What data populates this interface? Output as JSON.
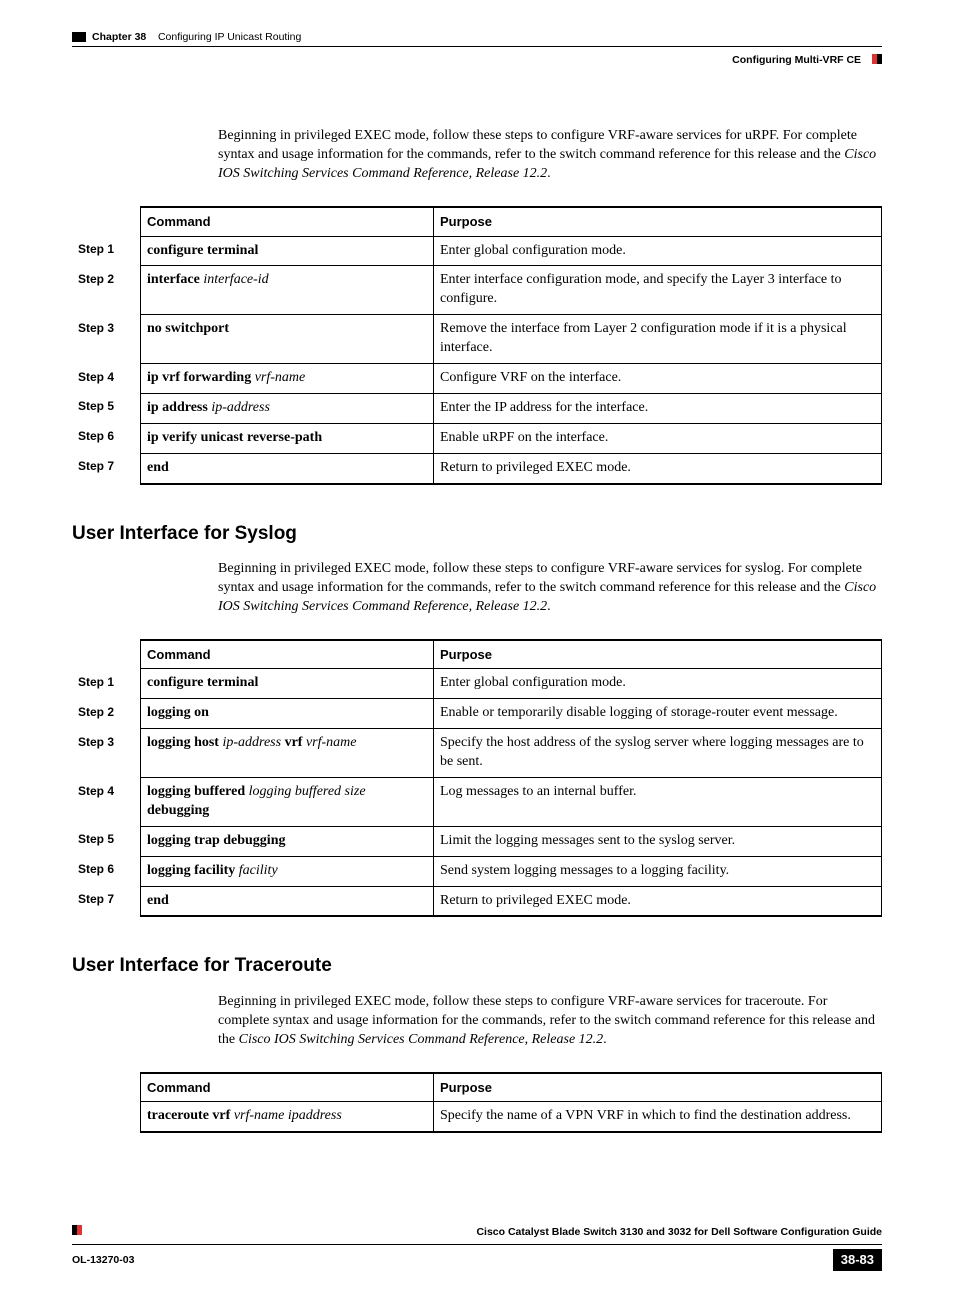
{
  "header": {
    "chapter": "Chapter 38",
    "chapter_title": "Configuring IP Unicast Routing",
    "section": "Configuring Multi-VRF CE"
  },
  "intro_urpf": {
    "text_before": "Beginning in privileged EXEC mode, follow these steps to configure VRF-aware services for uRPF. For complete syntax and usage information for the commands, refer to the switch command reference for this release and the ",
    "italic": "Cisco IOS Switching Services Command Reference, Release 12.2",
    "text_after": "."
  },
  "table_headers": {
    "command": "Command",
    "purpose": "Purpose"
  },
  "table_urpf": {
    "rows": [
      {
        "step": "Step 1",
        "cmd_bold": "configure terminal",
        "cmd_italic": "",
        "purpose": "Enter global configuration mode."
      },
      {
        "step": "Step 2",
        "cmd_bold": "interface",
        "cmd_italic": " interface-id",
        "purpose": "Enter interface configuration mode, and specify the Layer 3 interface to configure."
      },
      {
        "step": "Step 3",
        "cmd_bold": "no switchport",
        "cmd_italic": "",
        "purpose": "Remove the interface from Layer 2 configuration mode if it is a physical interface."
      },
      {
        "step": "Step 4",
        "cmd_bold": "ip vrf forwarding",
        "cmd_italic": " vrf-name",
        "purpose": "Configure VRF on the interface."
      },
      {
        "step": "Step 5",
        "cmd_bold": "ip address",
        "cmd_italic": " ip-address",
        "purpose": "Enter the IP address for the interface."
      },
      {
        "step": "Step 6",
        "cmd_bold": "ip verify unicast reverse-path",
        "cmd_italic": "",
        "purpose": "Enable uRPF on the interface."
      },
      {
        "step": "Step 7",
        "cmd_bold": "end",
        "cmd_italic": "",
        "purpose": "Return to privileged EXEC mode."
      }
    ]
  },
  "heading_syslog": "User Interface for Syslog",
  "intro_syslog": {
    "text_before": "Beginning in privileged EXEC mode, follow these steps to configure VRF-aware services for syslog. For complete syntax and usage information for the commands, refer to the switch command reference for this release and the ",
    "italic": "Cisco IOS Switching Services Command Reference, Release 12.2",
    "text_after": "."
  },
  "table_syslog": {
    "rows": [
      {
        "step": "Step 1",
        "cmd_html": "<span class=\"bold\">configure terminal</span>",
        "purpose": "Enter global configuration mode."
      },
      {
        "step": "Step 2",
        "cmd_html": "<span class=\"bold\">logging on</span>",
        "purpose": "Enable or temporarily disable logging of storage-router event message."
      },
      {
        "step": "Step 3",
        "cmd_html": "<span class=\"bold\">logging host</span> <span class=\"italic\">ip-address</span> <span class=\"bold\">vrf</span> <span class=\"italic\">vrf-name</span>",
        "purpose": "Specify the host address of the syslog server where logging messages are to be sent."
      },
      {
        "step": "Step 4",
        "cmd_html": "<span class=\"bold\">logging buffered</span> <span class=\"italic\">logging buffered size</span> <span class=\"bold\">debugging</span>",
        "purpose": "Log messages to an internal buffer."
      },
      {
        "step": "Step 5",
        "cmd_html": "<span class=\"bold\">logging trap debugging</span>",
        "purpose": "Limit the logging messages sent to the syslog server."
      },
      {
        "step": "Step 6",
        "cmd_html": "<span class=\"bold\">logging facility</span> <span class=\"italic\">facility</span>",
        "purpose": "Send system logging messages to a logging facility."
      },
      {
        "step": "Step 7",
        "cmd_html": "<span class=\"bold\">end</span>",
        "purpose": "Return to privileged EXEC mode."
      }
    ]
  },
  "heading_traceroute": "User Interface for Traceroute",
  "intro_traceroute": {
    "text_before": "Beginning in privileged EXEC mode, follow these steps to configure VRF-aware services for traceroute. For complete syntax and usage information for the commands, refer to the switch command reference for this release and the ",
    "italic": "Cisco IOS Switching Services Command Reference, Release 12.2",
    "text_after": "."
  },
  "table_traceroute": {
    "rows": [
      {
        "step": "",
        "cmd_html": "<span class=\"bold\">traceroute vrf</span> <span class=\"italic\">vrf-name ipaddress</span>",
        "purpose": "Specify the name of a VPN VRF in which to find the destination address."
      }
    ]
  },
  "footer": {
    "book_title": "Cisco Catalyst Blade Switch 3130 and 3032 for Dell Software Configuration Guide",
    "doc_id": "OL-13270-03",
    "page": "38-83"
  }
}
